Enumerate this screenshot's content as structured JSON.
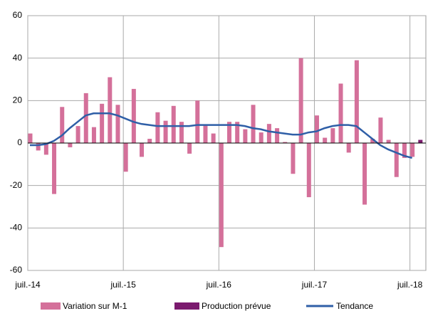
{
  "chart_data": {
    "type": "bar",
    "categories": [
      "juil.-14",
      null,
      null,
      null,
      null,
      null,
      null,
      null,
      null,
      null,
      null,
      null,
      "juil.-15",
      null,
      null,
      null,
      null,
      null,
      null,
      null,
      null,
      null,
      null,
      null,
      "juil.-16",
      null,
      null,
      null,
      null,
      null,
      null,
      null,
      null,
      null,
      null,
      null,
      "juil.-17",
      null,
      null,
      null,
      null,
      null,
      null,
      null,
      null,
      null,
      null,
      null,
      "juil.-18",
      null
    ],
    "series": [
      {
        "name": "Variation sur M-1",
        "color": "#d4709a",
        "type": "bar",
        "values": [
          4.5,
          -3.5,
          -5.5,
          -24,
          17,
          -2,
          8,
          23.5,
          7.5,
          18.5,
          31,
          18,
          -13.5,
          25.5,
          -6.5,
          2,
          14.5,
          10.5,
          17.5,
          10,
          -5,
          20,
          8.5,
          4.5,
          -49,
          10,
          10,
          6.5,
          18,
          5,
          9,
          7,
          0.5,
          -14.5,
          40,
          -25.5,
          13,
          2.5,
          7,
          28,
          -4.5,
          39,
          -29,
          2,
          12,
          1.5,
          -16,
          -7,
          -6.5,
          null
        ]
      },
      {
        "name": "Production prévue",
        "color": "#7b1a6e",
        "type": "bar",
        "values": [
          null,
          null,
          null,
          null,
          null,
          null,
          null,
          null,
          null,
          null,
          null,
          null,
          null,
          null,
          null,
          null,
          null,
          null,
          null,
          null,
          null,
          null,
          null,
          null,
          null,
          null,
          null,
          null,
          null,
          null,
          null,
          null,
          null,
          null,
          null,
          null,
          null,
          null,
          null,
          null,
          null,
          null,
          null,
          null,
          null,
          null,
          null,
          null,
          null,
          1.5
        ]
      },
      {
        "name": "Tendance",
        "color": "#2f5fa7",
        "type": "line",
        "values": [
          -1,
          -1,
          -0.5,
          1,
          3.5,
          7,
          10,
          13,
          14,
          14,
          14,
          13,
          11.5,
          10,
          9,
          8.5,
          8,
          8,
          8,
          8,
          8,
          8.5,
          8.5,
          8.5,
          8.5,
          8.5,
          8.5,
          8,
          7,
          6.5,
          5.5,
          5,
          4.5,
          4,
          4,
          5,
          5.5,
          7,
          8,
          8.5,
          8.5,
          8,
          5,
          2,
          -1,
          -3,
          -4.5,
          -6,
          -7,
          null
        ]
      }
    ],
    "ylim": [
      -60,
      60
    ],
    "yticks": [
      -60,
      -40,
      -20,
      0,
      20,
      40,
      60
    ],
    "grid": true
  }
}
